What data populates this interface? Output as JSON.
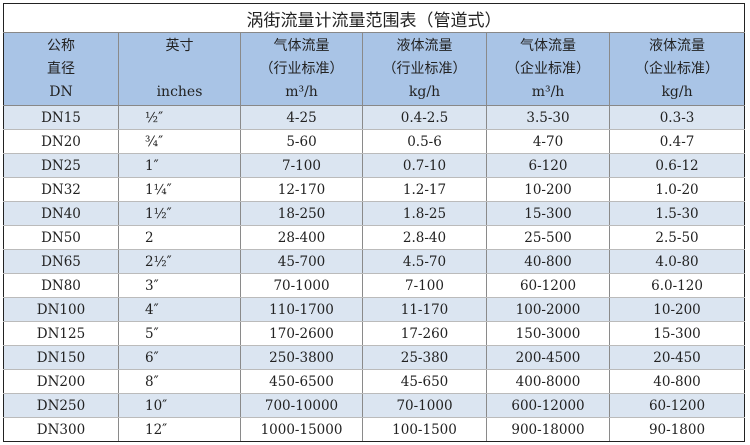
{
  "title": "涡街流量计流量范围表（管道式）",
  "headers": [
    {
      "l1": "公称",
      "l2": "直径",
      "l3": "DN"
    },
    {
      "l1": "英寸",
      "l2": "",
      "l3": "inches"
    },
    {
      "l1": "气体流量",
      "l2": "（行业标准）",
      "l3": "m³/h"
    },
    {
      "l1": "液体流量",
      "l2": "（行业标准）",
      "l3": "kg/h"
    },
    {
      "l1": "气体流量",
      "l2": "（企业标准）",
      "l3": "m³/h"
    },
    {
      "l1": "液体流量",
      "l2": "（企业标准）",
      "l3": "kg/h"
    }
  ],
  "rows": [
    [
      "DN15",
      "½″",
      "4-25",
      "0.4-2.5",
      "3.5-30",
      "0.3-3"
    ],
    [
      "DN20",
      "¾″",
      "5-60",
      "0.5-6",
      "4-70",
      "0.4-7"
    ],
    [
      "DN25",
      "1″",
      "7-100",
      "0.7-10",
      "6-120",
      "0.6-12"
    ],
    [
      "DN32",
      "1¼″",
      "12-170",
      "1.2-17",
      "10-200",
      "1.0-20"
    ],
    [
      "DN40",
      "1½″",
      "18-250",
      "1.8-25",
      "15-300",
      "1.5-30"
    ],
    [
      "DN50",
      "2",
      "28-400",
      "2.8-40",
      "25-500",
      "2.5-50"
    ],
    [
      "DN65",
      "2½″",
      "45-700",
      "4.5-70",
      "40-800",
      "4.0-80"
    ],
    [
      "DN80",
      "3″",
      "70-1000",
      "7-100",
      "60-1200",
      "6.0-120"
    ],
    [
      "DN100",
      "4″",
      "110-1700",
      "11-170",
      "100-2000",
      "10-200"
    ],
    [
      "DN125",
      "5″",
      "170-2600",
      "17-260",
      "150-3000",
      "15-300"
    ],
    [
      "DN150",
      "6″",
      "250-3800",
      "25-380",
      "200-4500",
      "20-450"
    ],
    [
      "DN200",
      "8″",
      "450-6500",
      "45-650",
      "400-8000",
      "40-800"
    ],
    [
      "DN250",
      "10″",
      "700-10000",
      "70-1000",
      "600-12000",
      "60-1200"
    ],
    [
      "DN300",
      "12″",
      "1000-15000",
      "100-1500",
      "900-18000",
      "90-1800"
    ]
  ]
}
